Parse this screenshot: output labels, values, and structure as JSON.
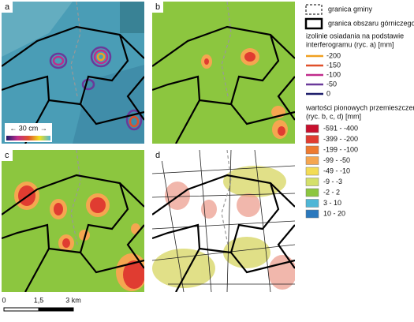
{
  "panels": {
    "a": "a",
    "b": "b",
    "c": "c",
    "d": "d"
  },
  "panel_a_scale": "← 30 cm →",
  "legend": {
    "boundary_municipality": "granica gminy",
    "boundary_mining_area": "granica obszaru górniczego",
    "isolines": {
      "title_lines": [
        "izolinie osiadania na podstawie",
        "interferogramu (ryc. a) [mm]"
      ],
      "items": [
        {
          "label": "-200",
          "color": "#f0a020"
        },
        {
          "label": "-150",
          "color": "#e0502a"
        },
        {
          "label": "-100",
          "color": "#c02c8c"
        },
        {
          "label": "-50",
          "color": "#6a3a9a"
        },
        {
          "label": "0",
          "color": "#1c1c6a"
        }
      ]
    },
    "displacements": {
      "title_lines": [
        "wartości pionowych przemieszczeń",
        "(ryc. b, c, d) [mm]"
      ],
      "items": [
        {
          "label": "-591 - -400",
          "color": "#c8102e"
        },
        {
          "label": "-399 - -200",
          "color": "#e03c31"
        },
        {
          "label": "-199 - -100",
          "color": "#ee7a30"
        },
        {
          "label": "-99 -  -50",
          "color": "#f5a650"
        },
        {
          "label": "-49 -  -10",
          "color": "#f3dc55"
        },
        {
          "label": "-9  -  -3",
          "color": "#d4e06a"
        },
        {
          "label": "-2  -   2",
          "color": "#8cc63f"
        },
        {
          "label": "3  -  10",
          "color": "#4fb6d6"
        },
        {
          "label": "10  -  20",
          "color": "#2a78bd"
        }
      ]
    }
  },
  "scale_bar": {
    "labels": [
      "0",
      "1,5",
      "3 km"
    ]
  }
}
